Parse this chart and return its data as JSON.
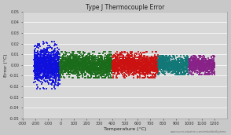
{
  "title": "Type J Thermocouple Error",
  "xlabel": "Temperature (°C)",
  "ylabel": "Error (°C)",
  "xlim": [
    -300,
    1300
  ],
  "ylim": [
    -0.05,
    0.05
  ],
  "xticks": [
    -300,
    -200,
    -100,
    0,
    100,
    200,
    300,
    400,
    500,
    600,
    700,
    800,
    900,
    1000,
    1100,
    1200
  ],
  "yticks": [
    -0.05,
    -0.04,
    -0.03,
    -0.02,
    -0.01,
    0.0,
    0.01,
    0.02,
    0.03,
    0.04,
    0.05
  ],
  "fig_bg_color": "#c8c8c8",
  "plot_bg_color": "#d8d8d8",
  "grid_color": "#ffffff",
  "watermark": "www.source-industries.com/embeddedSystems",
  "segments": [
    {
      "xmin": -210,
      "xmax": -10,
      "color": "#1010dd",
      "n": 1200,
      "spread": 0.008,
      "clip": 0.022
    },
    {
      "xmin": -10,
      "xmax": 400,
      "color": "#1a6b1a",
      "n": 1800,
      "spread": 0.005,
      "clip": 0.012
    },
    {
      "xmin": 400,
      "xmax": 760,
      "color": "#cc1111",
      "n": 1500,
      "spread": 0.005,
      "clip": 0.012
    },
    {
      "xmin": 760,
      "xmax": 1000,
      "color": "#117777",
      "n": 900,
      "spread": 0.004,
      "clip": 0.009
    },
    {
      "xmin": 1000,
      "xmax": 1200,
      "color": "#882288",
      "n": 700,
      "spread": 0.004,
      "clip": 0.009
    }
  ],
  "title_fontsize": 5.5,
  "label_fontsize": 4.5,
  "tick_fontsize": 3.5,
  "marker_size": 1.2
}
